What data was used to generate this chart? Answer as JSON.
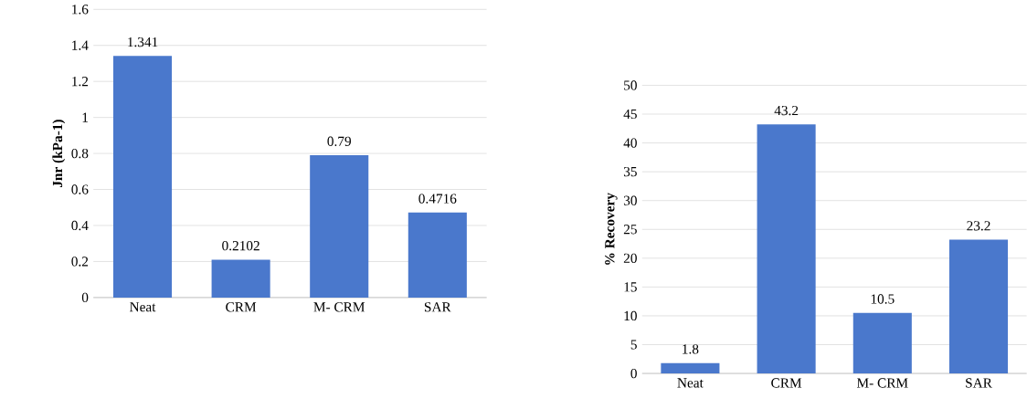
{
  "chart_data": [
    {
      "type": "bar",
      "ylabel": "Jnr  (kPa-1)",
      "categories": [
        "Neat",
        "CRM",
        "M- CRM",
        "SAR"
      ],
      "values": [
        1.341,
        0.2102,
        0.79,
        0.4716
      ],
      "color": "#4a78cc",
      "ylim": [
        0,
        1.6
      ],
      "yticks": [
        0,
        0.2,
        0.4,
        0.6,
        0.8,
        1,
        1.2,
        1.4,
        1.6
      ],
      "grid": "y",
      "data_labels": true
    },
    {
      "type": "bar",
      "ylabel": "% Recovery",
      "categories": [
        "Neat",
        "CRM",
        "M- CRM",
        "SAR"
      ],
      "values": [
        1.8,
        43.2,
        10.5,
        23.2
      ],
      "color": "#4a78cc",
      "ylim": [
        0,
        50
      ],
      "yticks": [
        0,
        5,
        10,
        15,
        20,
        25,
        30,
        35,
        40,
        45,
        50
      ],
      "grid": "y",
      "data_labels": true
    }
  ]
}
